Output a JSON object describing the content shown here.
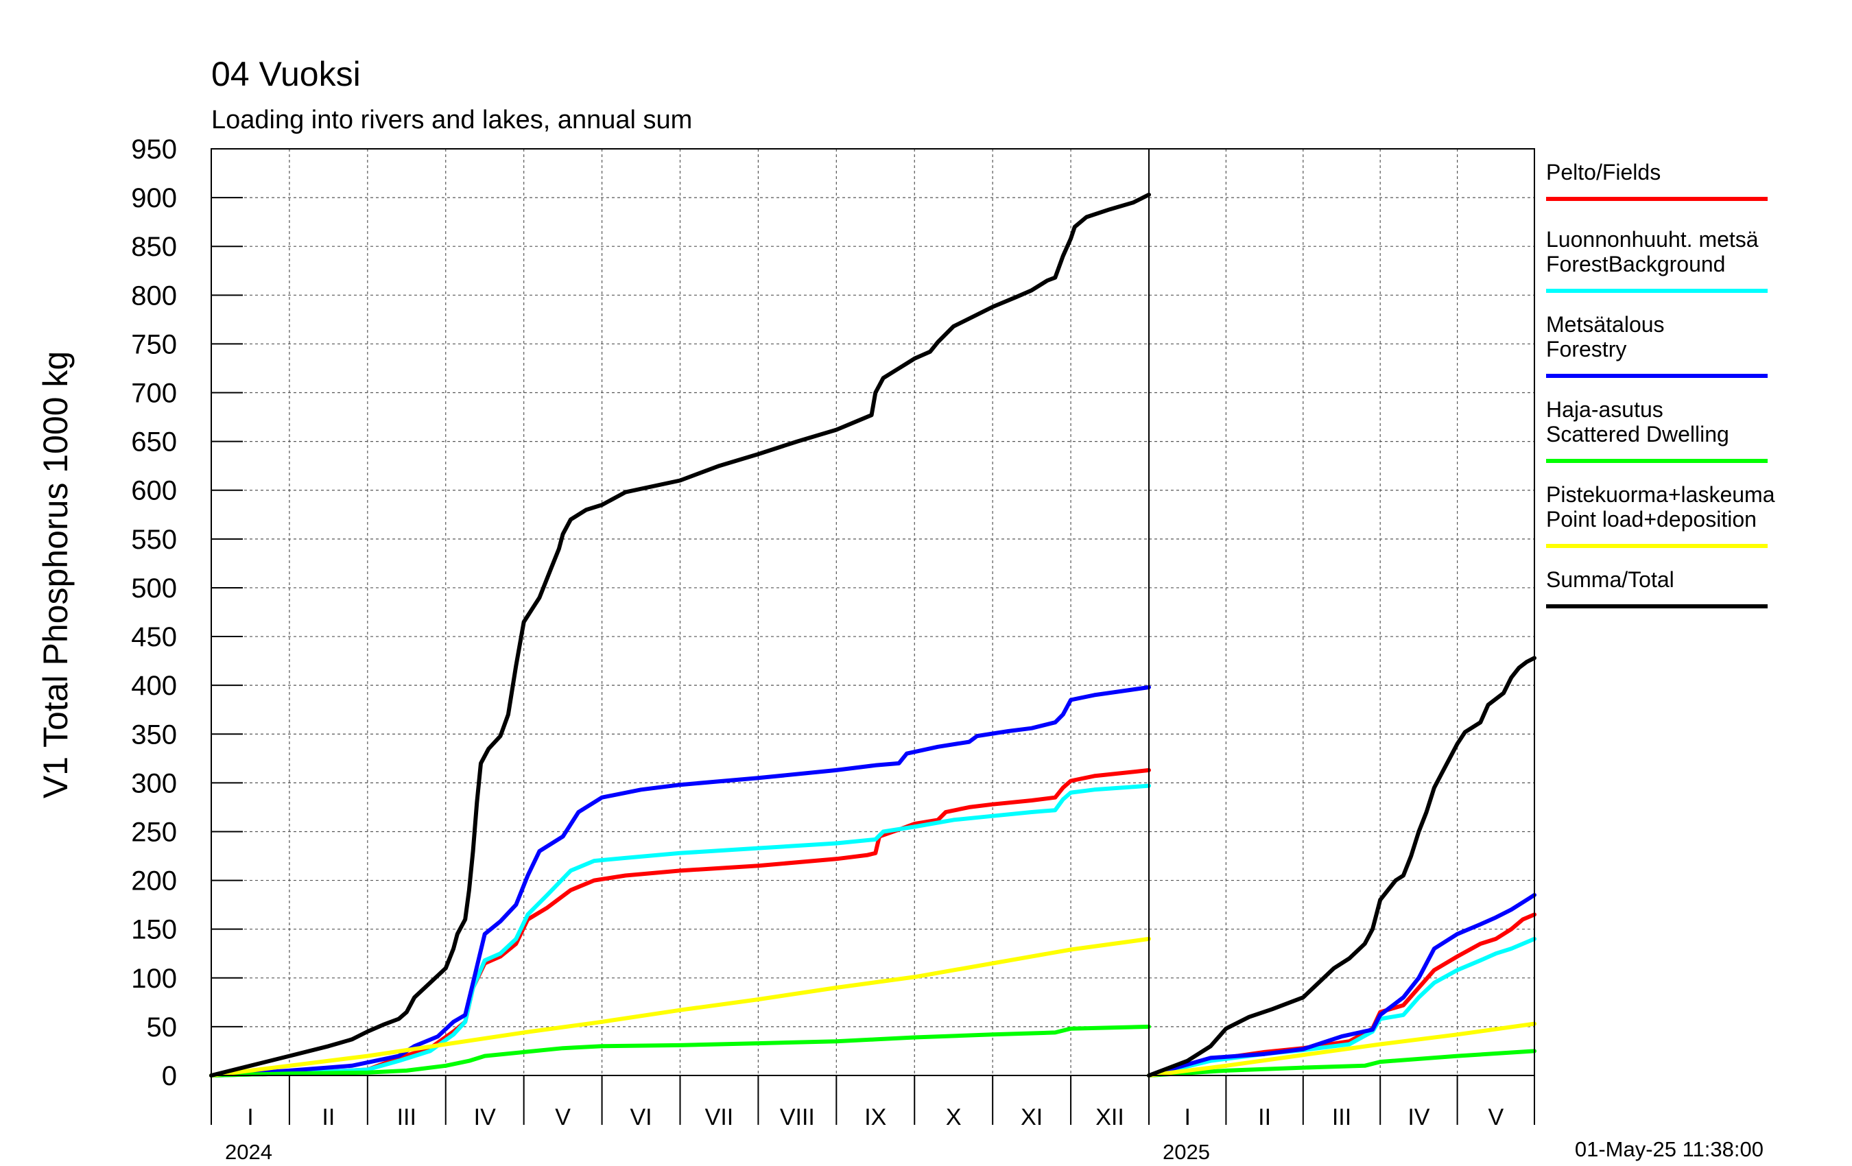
{
  "chart_data": {
    "type": "line",
    "title": "04 Vuoksi",
    "subtitle": "Loading into rivers and lakes, annual sum",
    "ylabel": "V1 Total Phosphorus 1000 kg",
    "ylim": [
      0,
      950
    ],
    "yticks": [
      0,
      50,
      100,
      150,
      200,
      250,
      300,
      350,
      400,
      450,
      500,
      550,
      600,
      650,
      700,
      750,
      800,
      850,
      900,
      950
    ],
    "grid": true,
    "legend_position": "right",
    "timestamp": "01-May-25 11:38:00",
    "panels": [
      {
        "year": "2024",
        "months": [
          "I",
          "II",
          "III",
          "IV",
          "V",
          "VI",
          "VII",
          "VIII",
          "IX",
          "X",
          "XI",
          "XII"
        ],
        "x_unit": "month",
        "xlim": [
          0,
          12
        ]
      },
      {
        "year": "2025",
        "months": [
          "I",
          "II",
          "III",
          "IV",
          "V"
        ],
        "x_unit": "month",
        "xlim": [
          0,
          5
        ]
      }
    ],
    "series": [
      {
        "name": "Pelto/Fields",
        "color": "#ff0000",
        "data_2024": [
          [
            0,
            0
          ],
          [
            1,
            2
          ],
          [
            2,
            6
          ],
          [
            2.4,
            18
          ],
          [
            2.8,
            28
          ],
          [
            3.1,
            45
          ],
          [
            3.25,
            55
          ],
          [
            3.35,
            90
          ],
          [
            3.5,
            115
          ],
          [
            3.7,
            122
          ],
          [
            3.9,
            135
          ],
          [
            4.05,
            160
          ],
          [
            4.3,
            172
          ],
          [
            4.6,
            190
          ],
          [
            4.9,
            200
          ],
          [
            5.3,
            205
          ],
          [
            6,
            210
          ],
          [
            7,
            215
          ],
          [
            8,
            222
          ],
          [
            8.4,
            226
          ],
          [
            8.5,
            228
          ],
          [
            8.55,
            245
          ],
          [
            8.8,
            252
          ],
          [
            9,
            258
          ],
          [
            9.3,
            262
          ],
          [
            9.4,
            270
          ],
          [
            9.7,
            275
          ],
          [
            10,
            278
          ],
          [
            10.5,
            282
          ],
          [
            10.8,
            285
          ],
          [
            10.9,
            295
          ],
          [
            11,
            302
          ],
          [
            11.3,
            307
          ],
          [
            12,
            313
          ]
        ],
        "data_2025": [
          [
            0,
            0
          ],
          [
            0.8,
            16
          ],
          [
            1.5,
            24
          ],
          [
            2,
            28
          ],
          [
            2.6,
            35
          ],
          [
            2.9,
            48
          ],
          [
            3,
            65
          ],
          [
            3.3,
            72
          ],
          [
            3.5,
            90
          ],
          [
            3.7,
            108
          ],
          [
            4,
            122
          ],
          [
            4.3,
            135
          ],
          [
            4.5,
            140
          ],
          [
            4.7,
            150
          ],
          [
            4.85,
            160
          ],
          [
            5,
            165
          ]
        ]
      },
      {
        "name": "Luonnonhuuht. metsä\nForestBackground",
        "color": "#00ffff",
        "data_2024": [
          [
            0,
            0
          ],
          [
            1,
            2
          ],
          [
            2,
            6
          ],
          [
            2.4,
            15
          ],
          [
            2.8,
            25
          ],
          [
            3.1,
            42
          ],
          [
            3.25,
            55
          ],
          [
            3.35,
            90
          ],
          [
            3.5,
            118
          ],
          [
            3.7,
            125
          ],
          [
            3.9,
            140
          ],
          [
            4.05,
            165
          ],
          [
            4.3,
            185
          ],
          [
            4.6,
            210
          ],
          [
            4.9,
            220
          ],
          [
            5.3,
            223
          ],
          [
            6,
            228
          ],
          [
            7,
            233
          ],
          [
            8,
            238
          ],
          [
            8.5,
            242
          ],
          [
            8.6,
            250
          ],
          [
            9,
            255
          ],
          [
            9.5,
            262
          ],
          [
            10,
            266
          ],
          [
            10.5,
            270
          ],
          [
            10.8,
            272
          ],
          [
            10.9,
            283
          ],
          [
            11,
            290
          ],
          [
            11.3,
            293
          ],
          [
            12,
            297
          ]
        ],
        "data_2025": [
          [
            0,
            0
          ],
          [
            0.8,
            15
          ],
          [
            1.5,
            22
          ],
          [
            2,
            26
          ],
          [
            2.6,
            32
          ],
          [
            2.9,
            45
          ],
          [
            3,
            58
          ],
          [
            3.3,
            62
          ],
          [
            3.5,
            80
          ],
          [
            3.7,
            95
          ],
          [
            4,
            108
          ],
          [
            4.3,
            118
          ],
          [
            4.5,
            125
          ],
          [
            4.7,
            130
          ],
          [
            5,
            140
          ]
        ]
      },
      {
        "name": "Metsätalous\nForestry",
        "color": "#0000ff",
        "data_2024": [
          [
            0,
            0
          ],
          [
            1,
            5
          ],
          [
            1.8,
            10
          ],
          [
            2.4,
            20
          ],
          [
            2.6,
            30
          ],
          [
            2.9,
            40
          ],
          [
            3.1,
            55
          ],
          [
            3.25,
            62
          ],
          [
            3.35,
            95
          ],
          [
            3.5,
            145
          ],
          [
            3.7,
            158
          ],
          [
            3.9,
            175
          ],
          [
            4.05,
            205
          ],
          [
            4.2,
            230
          ],
          [
            4.5,
            245
          ],
          [
            4.7,
            270
          ],
          [
            5,
            285
          ],
          [
            5.5,
            293
          ],
          [
            6,
            298
          ],
          [
            7,
            305
          ],
          [
            8,
            313
          ],
          [
            8.5,
            318
          ],
          [
            8.8,
            320
          ],
          [
            8.9,
            330
          ],
          [
            9.3,
            337
          ],
          [
            9.7,
            342
          ],
          [
            9.8,
            348
          ],
          [
            10.2,
            353
          ],
          [
            10.5,
            356
          ],
          [
            10.8,
            362
          ],
          [
            10.9,
            370
          ],
          [
            11,
            385
          ],
          [
            11.3,
            390
          ],
          [
            12,
            398
          ]
        ],
        "data_2025": [
          [
            0,
            0
          ],
          [
            0.8,
            18
          ],
          [
            1.5,
            22
          ],
          [
            2,
            27
          ],
          [
            2.5,
            40
          ],
          [
            2.9,
            47
          ],
          [
            3,
            62
          ],
          [
            3.3,
            80
          ],
          [
            3.5,
            100
          ],
          [
            3.7,
            130
          ],
          [
            4,
            145
          ],
          [
            4.3,
            155
          ],
          [
            4.5,
            162
          ],
          [
            4.7,
            170
          ],
          [
            4.9,
            180
          ],
          [
            5,
            185
          ]
        ]
      },
      {
        "name": "Haja-asutus\nScattered Dwelling",
        "color": "#00ff00",
        "data_2024": [
          [
            0,
            0
          ],
          [
            1,
            2
          ],
          [
            2,
            3
          ],
          [
            2.5,
            5
          ],
          [
            3,
            10
          ],
          [
            3.3,
            15
          ],
          [
            3.5,
            20
          ],
          [
            4,
            24
          ],
          [
            4.5,
            28
          ],
          [
            5,
            30
          ],
          [
            6,
            31
          ],
          [
            7,
            33
          ],
          [
            8,
            35
          ],
          [
            8.5,
            37
          ],
          [
            9,
            39
          ],
          [
            10,
            42
          ],
          [
            10.8,
            44
          ],
          [
            11,
            48
          ],
          [
            12,
            50
          ]
        ],
        "data_2025": [
          [
            0,
            0
          ],
          [
            1,
            5
          ],
          [
            2,
            8
          ],
          [
            2.8,
            10
          ],
          [
            3,
            14
          ],
          [
            4,
            20
          ],
          [
            5,
            25
          ]
        ]
      },
      {
        "name": "Pistekuorma+laskeuma\nPoint load+deposition",
        "color": "#ffff00",
        "data_2024": [
          [
            0,
            0
          ],
          [
            1,
            10
          ],
          [
            2,
            20
          ],
          [
            3,
            32
          ],
          [
            4,
            44
          ],
          [
            5,
            55
          ],
          [
            6,
            67
          ],
          [
            7,
            78
          ],
          [
            8,
            90
          ],
          [
            9,
            101
          ],
          [
            10,
            115
          ],
          [
            11,
            129
          ],
          [
            12,
            140
          ]
        ],
        "data_2025": [
          [
            0,
            0
          ],
          [
            1,
            10
          ],
          [
            2,
            21
          ],
          [
            3,
            32
          ],
          [
            4,
            42
          ],
          [
            5,
            53
          ]
        ]
      },
      {
        "name": "Summa/Total",
        "color": "#000000",
        "data_2024": [
          [
            0,
            0
          ],
          [
            0.5,
            10
          ],
          [
            1,
            20
          ],
          [
            1.5,
            30
          ],
          [
            1.8,
            37
          ],
          [
            2,
            45
          ],
          [
            2.2,
            52
          ],
          [
            2.4,
            58
          ],
          [
            2.5,
            65
          ],
          [
            2.6,
            80
          ],
          [
            2.8,
            95
          ],
          [
            3,
            110
          ],
          [
            3.1,
            130
          ],
          [
            3.15,
            145
          ],
          [
            3.25,
            160
          ],
          [
            3.3,
            190
          ],
          [
            3.35,
            230
          ],
          [
            3.4,
            280
          ],
          [
            3.45,
            320
          ],
          [
            3.55,
            335
          ],
          [
            3.7,
            348
          ],
          [
            3.8,
            370
          ],
          [
            3.9,
            420
          ],
          [
            4,
            465
          ],
          [
            4.2,
            490
          ],
          [
            4.35,
            520
          ],
          [
            4.45,
            540
          ],
          [
            4.5,
            555
          ],
          [
            4.6,
            570
          ],
          [
            4.8,
            580
          ],
          [
            5,
            585
          ],
          [
            5.3,
            598
          ],
          [
            6,
            610
          ],
          [
            6.5,
            625
          ],
          [
            7,
            637
          ],
          [
            7.5,
            650
          ],
          [
            8,
            662
          ],
          [
            8.3,
            672
          ],
          [
            8.45,
            677
          ],
          [
            8.5,
            700
          ],
          [
            8.6,
            715
          ],
          [
            8.8,
            725
          ],
          [
            8.9,
            730
          ],
          [
            9,
            735
          ],
          [
            9.2,
            742
          ],
          [
            9.3,
            752
          ],
          [
            9.5,
            768
          ],
          [
            9.8,
            780
          ],
          [
            10,
            788
          ],
          [
            10.3,
            798
          ],
          [
            10.5,
            805
          ],
          [
            10.7,
            815
          ],
          [
            10.8,
            818
          ],
          [
            10.9,
            840
          ],
          [
            11,
            858
          ],
          [
            11.05,
            870
          ],
          [
            11.2,
            880
          ],
          [
            11.5,
            888
          ],
          [
            11.8,
            895
          ],
          [
            12,
            903
          ]
        ],
        "data_2025": [
          [
            0,
            0
          ],
          [
            0.5,
            15
          ],
          [
            0.8,
            30
          ],
          [
            1,
            48
          ],
          [
            1.3,
            60
          ],
          [
            1.6,
            68
          ],
          [
            2,
            80
          ],
          [
            2.2,
            95
          ],
          [
            2.4,
            110
          ],
          [
            2.6,
            120
          ],
          [
            2.8,
            135
          ],
          [
            2.9,
            150
          ],
          [
            3,
            180
          ],
          [
            3.2,
            200
          ],
          [
            3.3,
            205
          ],
          [
            3.4,
            225
          ],
          [
            3.5,
            250
          ],
          [
            3.6,
            270
          ],
          [
            3.7,
            295
          ],
          [
            3.8,
            310
          ],
          [
            3.9,
            325
          ],
          [
            4,
            340
          ],
          [
            4.1,
            352
          ],
          [
            4.3,
            362
          ],
          [
            4.4,
            380
          ],
          [
            4.6,
            392
          ],
          [
            4.7,
            408
          ],
          [
            4.8,
            418
          ],
          [
            4.9,
            424
          ],
          [
            5,
            428
          ]
        ]
      }
    ]
  }
}
